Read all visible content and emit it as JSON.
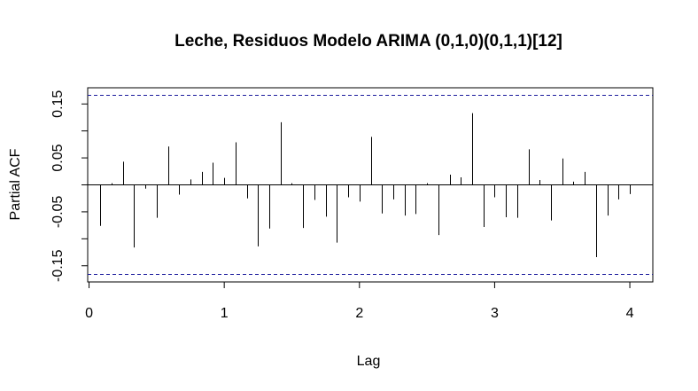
{
  "chart_data": {
    "type": "bar",
    "title": "Leche, Residuos Modelo ARIMA (0,1,0)(0,1,1)[12]",
    "xlabel": "Lag",
    "ylabel": "Partial ACF",
    "xlim": [
      -0.01,
      4.17
    ],
    "ylim": [
      -0.18,
      0.18
    ],
    "x_ticks": [
      0,
      1,
      2,
      3,
      4
    ],
    "x_tick_labels": [
      "0",
      "1",
      "2",
      "3",
      "4"
    ],
    "y_ticks": [
      -0.15,
      -0.05,
      0.05,
      0.15
    ],
    "y_tick_labels": [
      "-0.15",
      "-0.05",
      "0.05",
      "0.15"
    ],
    "y_minor_ticks": [
      -0.1,
      0,
      0.1
    ],
    "confidence_limit": 0.166,
    "grid": false,
    "series": [
      {
        "x": [
          0.0833,
          0.1667,
          0.25,
          0.3333,
          0.4167,
          0.5,
          0.5833,
          0.6667,
          0.75,
          0.8333,
          0.9167,
          1.0,
          1.0833,
          1.1667,
          1.25,
          1.3333,
          1.4167,
          1.5,
          1.5833,
          1.6667,
          1.75,
          1.8333,
          1.9167,
          2.0,
          2.0833,
          2.1667,
          2.25,
          2.3333,
          2.4167,
          2.5,
          2.5833,
          2.6667,
          2.75,
          2.8333,
          2.9167,
          3.0,
          3.0833,
          3.1667,
          3.25,
          3.3333,
          3.4167,
          3.5,
          3.5833,
          3.6667,
          3.75,
          3.8333,
          3.9167,
          4.0
        ],
        "values": [
          -0.076,
          0.003,
          0.043,
          -0.116,
          -0.007,
          -0.061,
          0.071,
          -0.018,
          0.01,
          0.024,
          0.041,
          0.013,
          0.079,
          -0.025,
          -0.114,
          -0.081,
          0.116,
          0.003,
          -0.08,
          -0.028,
          -0.059,
          -0.107,
          -0.023,
          -0.031,
          0.089,
          -0.053,
          -0.027,
          -0.057,
          -0.054,
          0.003,
          -0.093,
          0.019,
          0.014,
          0.133,
          -0.078,
          -0.023,
          -0.06,
          -0.061,
          0.066,
          0.009,
          -0.066,
          0.049,
          0.006,
          0.024,
          -0.134,
          -0.057,
          -0.027,
          -0.017
        ]
      }
    ]
  }
}
